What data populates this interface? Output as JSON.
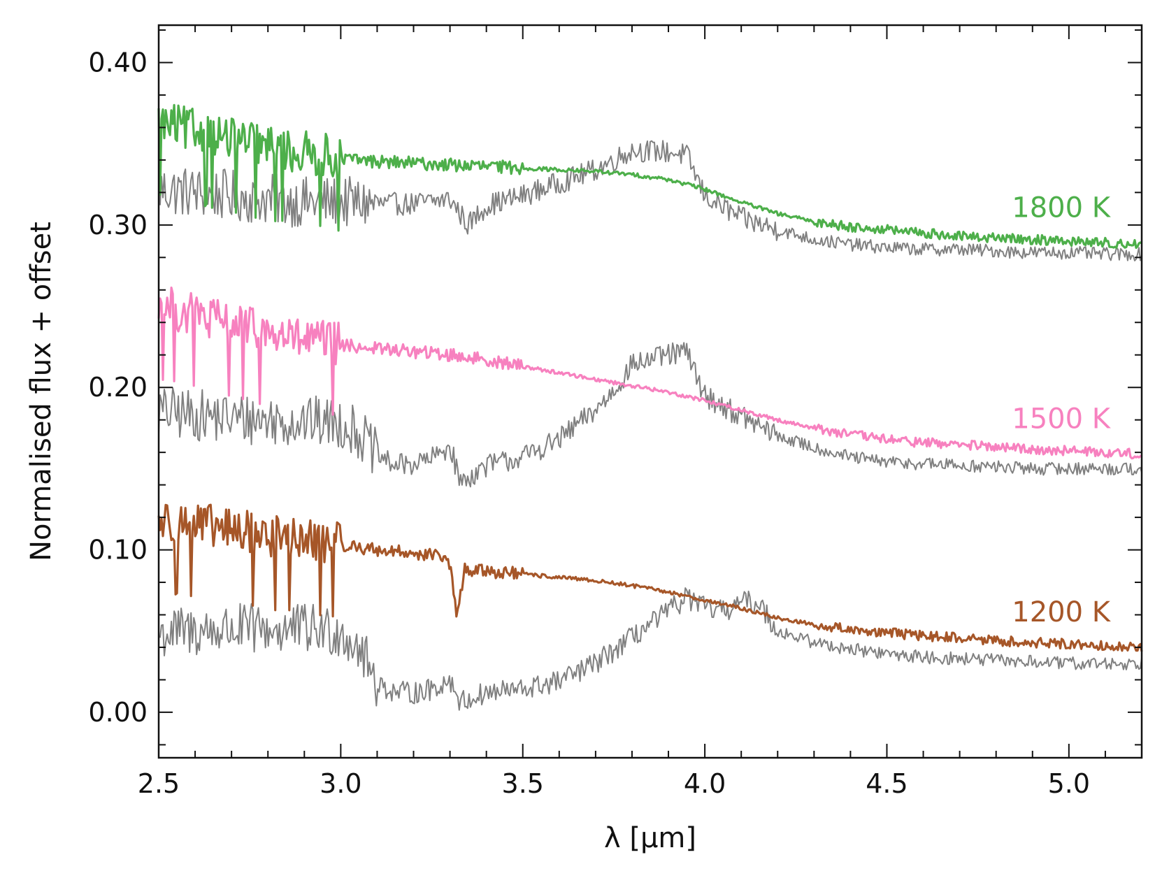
{
  "chart_data": {
    "type": "line",
    "title": "",
    "xlabel": "λ [μm]",
    "ylabel": "Normalised flux + offset",
    "xlim": [
      2.5,
      5.2
    ],
    "ylim": [
      -0.028,
      0.423
    ],
    "xticks": [
      2.5,
      3.0,
      3.5,
      4.0,
      4.5,
      5.0
    ],
    "xtick_labels": [
      "2.5",
      "3.0",
      "3.5",
      "4.0",
      "4.5",
      "5.0"
    ],
    "yticks": [
      0.0,
      0.1,
      0.2,
      0.3,
      0.4
    ],
    "ytick_labels": [
      "0.00",
      "0.10",
      "0.20",
      "0.30",
      "0.40"
    ],
    "grid": false,
    "series": [
      {
        "name": "1800 K model",
        "label": "1800 K",
        "color": "#4daf4a",
        "role": "model",
        "x": [
          2.5,
          2.6,
          2.7,
          2.8,
          2.9,
          3.0,
          3.1,
          3.2,
          3.3,
          3.4,
          3.5,
          3.6,
          3.7,
          3.8,
          3.9,
          4.0,
          4.1,
          4.2,
          4.3,
          4.4,
          4.5,
          4.6,
          4.7,
          4.8,
          4.9,
          5.0,
          5.1,
          5.2
        ],
        "y": [
          0.362,
          0.358,
          0.352,
          0.347,
          0.344,
          0.341,
          0.339,
          0.338,
          0.337,
          0.336,
          0.335,
          0.334,
          0.333,
          0.331,
          0.328,
          0.322,
          0.314,
          0.307,
          0.302,
          0.299,
          0.297,
          0.295,
          0.293,
          0.292,
          0.291,
          0.29,
          0.289,
          0.288
        ]
      },
      {
        "name": "1800 K observed",
        "color": "#808080",
        "role": "observed",
        "x": [
          2.5,
          2.6,
          2.7,
          2.8,
          2.9,
          3.0,
          3.1,
          3.2,
          3.3,
          3.35,
          3.4,
          3.5,
          3.6,
          3.7,
          3.8,
          3.9,
          3.95,
          4.0,
          4.1,
          4.2,
          4.3,
          4.4,
          4.5,
          4.6,
          4.7,
          4.8,
          4.9,
          5.0,
          5.1,
          5.2
        ],
        "y": [
          0.322,
          0.32,
          0.318,
          0.316,
          0.314,
          0.314,
          0.313,
          0.313,
          0.316,
          0.3,
          0.312,
          0.318,
          0.326,
          0.334,
          0.346,
          0.345,
          0.343,
          0.318,
          0.304,
          0.297,
          0.291,
          0.288,
          0.286,
          0.285,
          0.285,
          0.284,
          0.283,
          0.283,
          0.282,
          0.282
        ]
      },
      {
        "name": "1500 K model",
        "label": "1500 K",
        "color": "#f781bf",
        "role": "model",
        "x": [
          2.5,
          2.6,
          2.7,
          2.8,
          2.9,
          3.0,
          3.1,
          3.2,
          3.3,
          3.4,
          3.5,
          3.6,
          3.7,
          3.8,
          3.9,
          4.0,
          4.1,
          4.2,
          4.3,
          4.4,
          4.5,
          4.6,
          4.7,
          4.8,
          4.9,
          5.0,
          5.1,
          5.2
        ],
        "y": [
          0.25,
          0.244,
          0.238,
          0.233,
          0.229,
          0.226,
          0.224,
          0.222,
          0.22,
          0.217,
          0.213,
          0.209,
          0.205,
          0.201,
          0.197,
          0.192,
          0.186,
          0.18,
          0.175,
          0.171,
          0.168,
          0.166,
          0.165,
          0.163,
          0.162,
          0.161,
          0.16,
          0.159
        ]
      },
      {
        "name": "1500 K observed",
        "color": "#808080",
        "role": "observed",
        "x": [
          2.5,
          2.6,
          2.7,
          2.8,
          2.9,
          3.0,
          3.05,
          3.1,
          3.15,
          3.2,
          3.25,
          3.3,
          3.33,
          3.4,
          3.5,
          3.6,
          3.7,
          3.75,
          3.8,
          3.9,
          3.95,
          4.0,
          4.1,
          4.2,
          4.3,
          4.4,
          4.5,
          4.6,
          4.7,
          4.8,
          4.9,
          5.0,
          5.1,
          5.2
        ],
        "y": [
          0.185,
          0.183,
          0.181,
          0.18,
          0.179,
          0.178,
          0.172,
          0.158,
          0.152,
          0.153,
          0.156,
          0.164,
          0.141,
          0.152,
          0.157,
          0.168,
          0.186,
          0.198,
          0.214,
          0.22,
          0.222,
          0.195,
          0.182,
          0.17,
          0.163,
          0.157,
          0.154,
          0.153,
          0.152,
          0.151,
          0.15,
          0.15,
          0.15,
          0.15
        ]
      },
      {
        "name": "1200 K model",
        "label": "1200 K",
        "color": "#a65628",
        "role": "model",
        "x": [
          2.5,
          2.6,
          2.7,
          2.8,
          2.9,
          3.0,
          3.1,
          3.2,
          3.28,
          3.3,
          3.32,
          3.34,
          3.4,
          3.5,
          3.6,
          3.7,
          3.8,
          3.9,
          4.0,
          4.1,
          4.2,
          4.3,
          4.4,
          4.5,
          4.6,
          4.7,
          4.8,
          4.9,
          5.0,
          5.1,
          5.2
        ],
        "y": [
          0.118,
          0.115,
          0.112,
          0.108,
          0.105,
          0.103,
          0.1,
          0.098,
          0.096,
          0.09,
          0.058,
          0.088,
          0.087,
          0.085,
          0.083,
          0.081,
          0.078,
          0.074,
          0.069,
          0.064,
          0.058,
          0.054,
          0.051,
          0.049,
          0.047,
          0.046,
          0.044,
          0.043,
          0.042,
          0.041,
          0.04
        ]
      },
      {
        "name": "1200 K observed",
        "color": "#808080",
        "role": "observed",
        "x": [
          2.5,
          2.6,
          2.7,
          2.8,
          2.9,
          3.0,
          3.05,
          3.1,
          3.15,
          3.2,
          3.25,
          3.3,
          3.33,
          3.4,
          3.5,
          3.6,
          3.7,
          3.8,
          3.9,
          3.95,
          4.0,
          4.05,
          4.1,
          4.15,
          4.2,
          4.3,
          4.4,
          4.5,
          4.6,
          4.7,
          4.8,
          4.9,
          5.0,
          5.1,
          5.2
        ],
        "y": [
          0.048,
          0.05,
          0.051,
          0.051,
          0.051,
          0.05,
          0.04,
          0.018,
          0.012,
          0.012,
          0.014,
          0.02,
          0.006,
          0.012,
          0.014,
          0.019,
          0.03,
          0.046,
          0.062,
          0.071,
          0.064,
          0.062,
          0.068,
          0.067,
          0.05,
          0.043,
          0.039,
          0.036,
          0.034,
          0.033,
          0.032,
          0.031,
          0.03,
          0.03,
          0.03
        ]
      }
    ]
  }
}
